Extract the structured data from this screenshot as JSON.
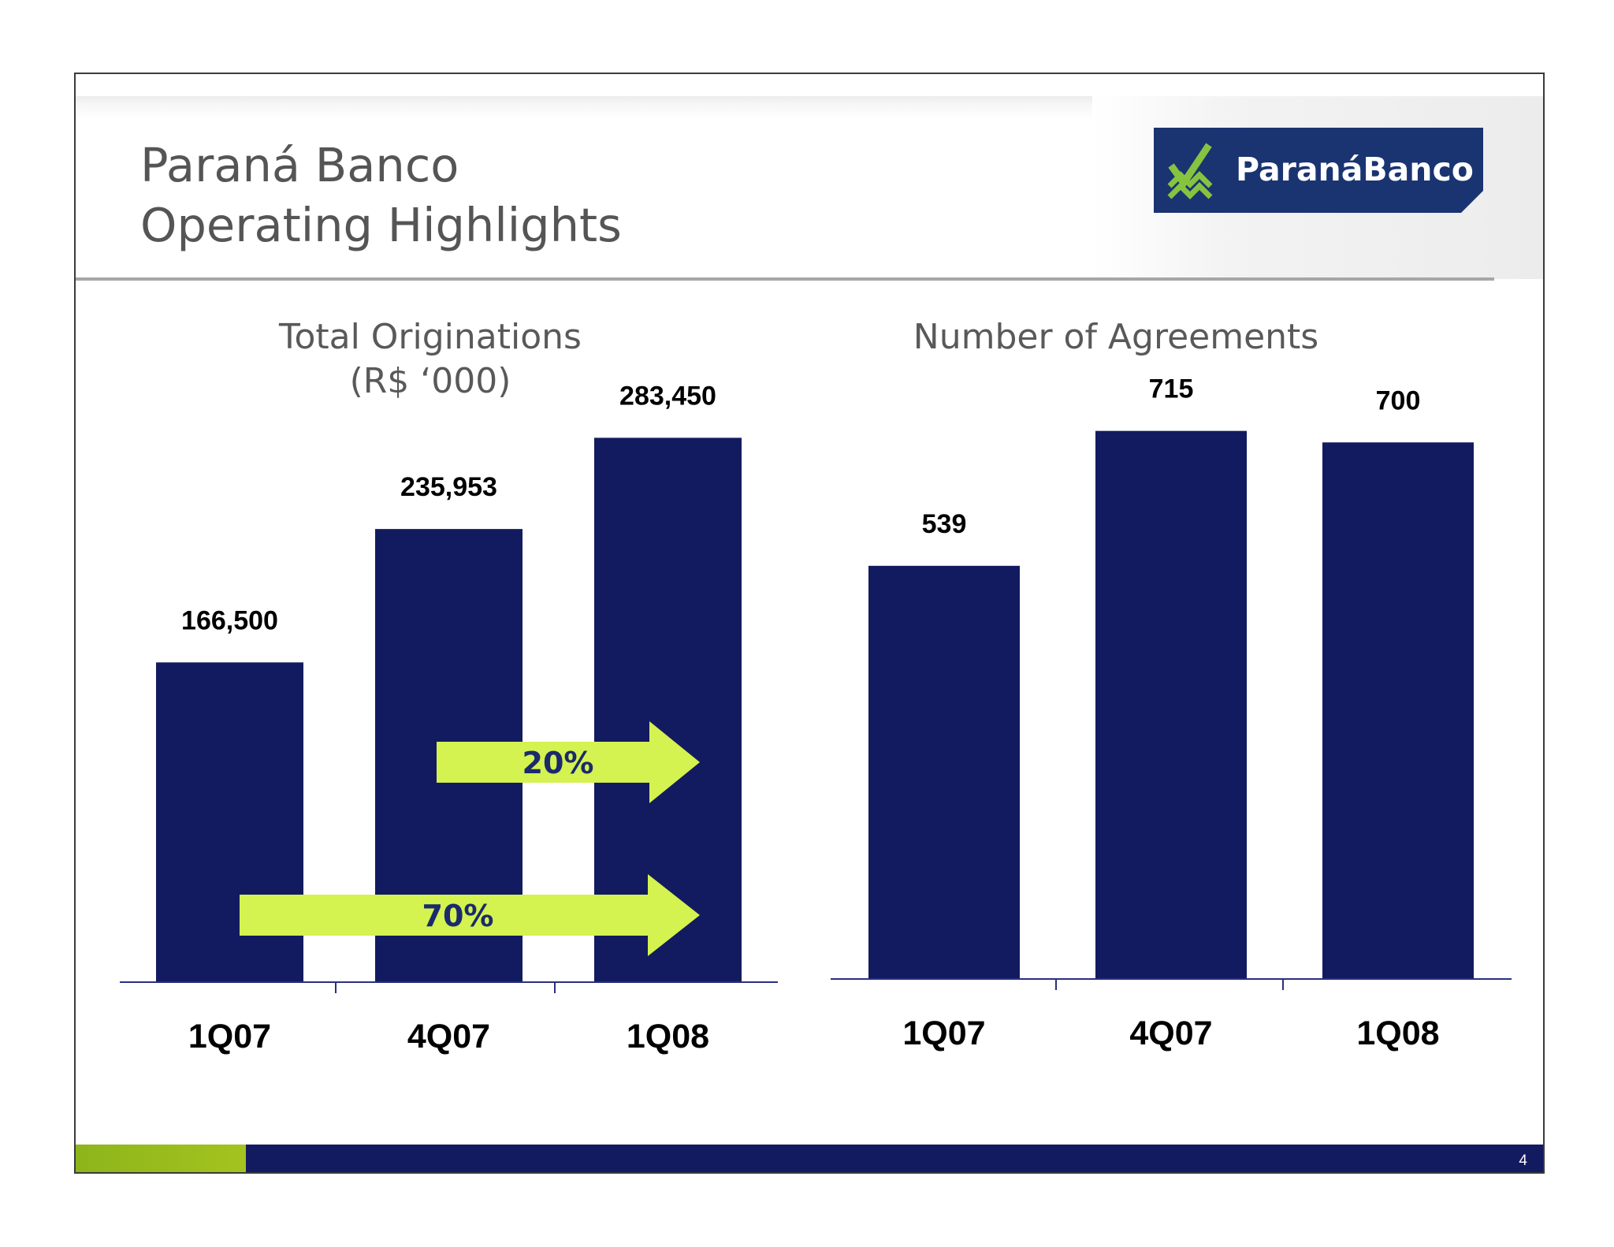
{
  "slide": {
    "title_line1": "Paraná Banco",
    "title_line2": "Operating Highlights",
    "logo_text": "ParanáBanco",
    "page_number": "4"
  },
  "colors": {
    "bar": "#131b60",
    "arrow": "#d4f250",
    "title": "#555555",
    "footer_green": "#96bb1c",
    "footer_navy": "#131b60",
    "logo_bg": "#1a3472"
  },
  "chart_data": [
    {
      "type": "bar",
      "title": "Total Originations",
      "subtitle": "(R$ ‘000)",
      "categories": [
        "1Q07",
        "4Q07",
        "1Q08"
      ],
      "values": [
        166500,
        235953,
        283450
      ],
      "value_labels": [
        "166,500",
        "235,953",
        "283,450"
      ],
      "ylim": [
        0,
        330000
      ],
      "grid": false,
      "annotations": [
        {
          "type": "growth-arrow",
          "label": "70%",
          "from": "1Q07",
          "to": "1Q08"
        },
        {
          "type": "growth-arrow",
          "label": "20%",
          "from": "4Q07",
          "to": "1Q08"
        }
      ]
    },
    {
      "type": "bar",
      "title": "Number of Agreements",
      "categories": [
        "1Q07",
        "4Q07",
        "1Q08"
      ],
      "values": [
        539,
        715,
        700
      ],
      "value_labels": [
        "539",
        "715",
        "700"
      ],
      "ylim": [
        0,
        800
      ],
      "grid": false
    }
  ]
}
